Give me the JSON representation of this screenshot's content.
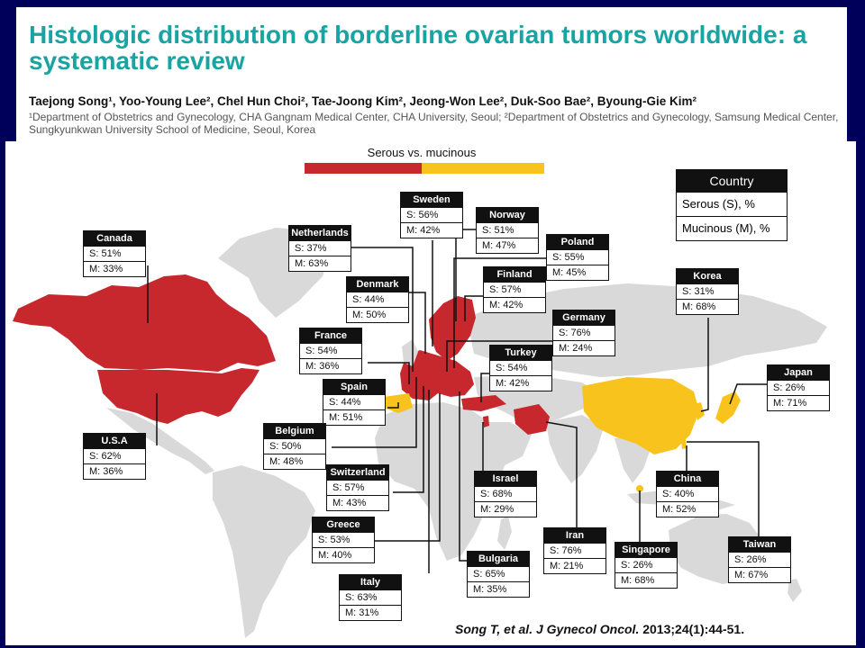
{
  "header": {
    "title": "Histologic distribution of borderline ovarian tumors worldwide: a systematic review",
    "authors": "Taejong Song¹, Yoo-Young Lee², Chel Hun Choi², Tae-Joong Kim², Jeong-Won Lee², Duk-Soo Bae², Byoung-Gie Kim²",
    "affiliations": "¹Department of Obstetrics and Gynecology, CHA Gangnam Medical Center, CHA University, Seoul; ²Department of Obstetrics and Gynecology, Samsung Medical Center, Sungkyunkwan University School of Medicine, Seoul, Korea"
  },
  "legend": {
    "bar_label": "Serous vs. mucinous",
    "header": "Country",
    "serous_row": "Serous (S), %",
    "mucinous_row": "Mucinous (M), %"
  },
  "colors": {
    "serous": "#c6282e",
    "mucinous": "#f8c31c",
    "no_data": "#d9d9d9",
    "title": "#1aa3a3",
    "background": "#00005a"
  },
  "countries": [
    {
      "name": "Canada",
      "serous": "S: 51%",
      "mucinous": "M: 33%"
    },
    {
      "name": "U.S.A",
      "serous": "S: 62%",
      "mucinous": "M: 36%"
    },
    {
      "name": "Netherlands",
      "serous": "S: 37%",
      "mucinous": "M: 63%"
    },
    {
      "name": "Sweden",
      "serous": "S: 56%",
      "mucinous": "M: 42%"
    },
    {
      "name": "Norway",
      "serous": "S: 51%",
      "mucinous": "M: 47%"
    },
    {
      "name": "Poland",
      "serous": "S: 55%",
      "mucinous": "M: 45%"
    },
    {
      "name": "Denmark",
      "serous": "S: 44%",
      "mucinous": "M: 50%"
    },
    {
      "name": "Finland",
      "serous": "S: 57%",
      "mucinous": "M: 42%"
    },
    {
      "name": "France",
      "serous": "S: 54%",
      "mucinous": "M: 36%"
    },
    {
      "name": "Germany",
      "serous": "S: 76%",
      "mucinous": "M: 24%"
    },
    {
      "name": "Turkey",
      "serous": "S: 54%",
      "mucinous": "M: 42%"
    },
    {
      "name": "Spain",
      "serous": "S: 44%",
      "mucinous": "M: 51%"
    },
    {
      "name": "Belgium",
      "serous": "S: 50%",
      "mucinous": "M: 48%"
    },
    {
      "name": "Switzerland",
      "serous": "S: 57%",
      "mucinous": "M: 43%"
    },
    {
      "name": "Israel",
      "serous": "S: 68%",
      "mucinous": "M: 29%"
    },
    {
      "name": "Greece",
      "serous": "S: 53%",
      "mucinous": "M: 40%"
    },
    {
      "name": "Iran",
      "serous": "S: 76%",
      "mucinous": "M: 21%"
    },
    {
      "name": "Bulgaria",
      "serous": "S: 65%",
      "mucinous": "M: 35%"
    },
    {
      "name": "Italy",
      "serous": "S: 63%",
      "mucinous": "M: 31%"
    },
    {
      "name": "Korea",
      "serous": "S: 31%",
      "mucinous": "M: 68%"
    },
    {
      "name": "Japan",
      "serous": "S: 26%",
      "mucinous": "M: 71%"
    },
    {
      "name": "China",
      "serous": "S: 40%",
      "mucinous": "M: 52%"
    },
    {
      "name": "Singapore",
      "serous": "S: 26%",
      "mucinous": "M: 68%"
    },
    {
      "name": "Taiwan",
      "serous": "S: 26%",
      "mucinous": "M: 67%"
    }
  ],
  "citation": {
    "authors": "Song T, et al. ",
    "journal": "J Gynecol Oncol.",
    "details": " 2013;24(1):44-51."
  }
}
